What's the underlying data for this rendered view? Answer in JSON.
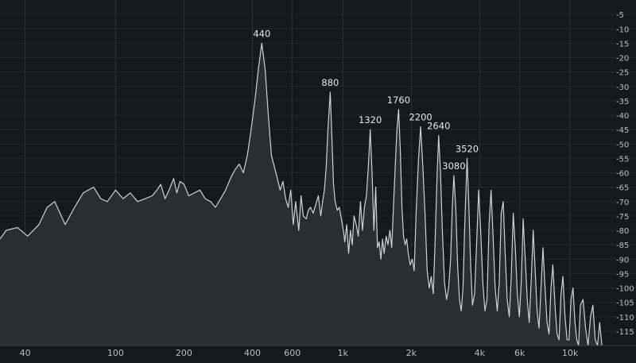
{
  "chart_data": {
    "type": "area",
    "title": "",
    "xlabel": "",
    "ylabel": "",
    "x_scale": "log",
    "xlim": [
      31,
      19500
    ],
    "ylim": [
      -120,
      0
    ],
    "grid": true,
    "x_ticks": [
      {
        "value": 40,
        "label": "40"
      },
      {
        "value": 100,
        "label": "100"
      },
      {
        "value": 200,
        "label": "200"
      },
      {
        "value": 400,
        "label": "400"
      },
      {
        "value": 600,
        "label": "600"
      },
      {
        "value": 1000,
        "label": "1k"
      },
      {
        "value": 2000,
        "label": "2k"
      },
      {
        "value": 4000,
        "label": "4k"
      },
      {
        "value": 6000,
        "label": "6k"
      },
      {
        "value": 10000,
        "label": "10k"
      }
    ],
    "y_ticks": [
      -5,
      -10,
      -15,
      -20,
      -25,
      -30,
      -35,
      -40,
      -45,
      -50,
      -55,
      -60,
      -65,
      -70,
      -75,
      -80,
      -85,
      -90,
      -95,
      -100,
      -105,
      -110,
      -115
    ],
    "peaks": [
      {
        "freq": 440,
        "label": "440",
        "level": -15
      },
      {
        "freq": 880,
        "label": "880",
        "level": -32
      },
      {
        "freq": 1320,
        "label": "1320",
        "level": -45
      },
      {
        "freq": 1760,
        "label": "1760",
        "level": -38
      },
      {
        "freq": 2200,
        "label": "2200",
        "level": -44
      },
      {
        "freq": 2640,
        "label": "2640",
        "level": -47
      },
      {
        "freq": 3080,
        "label": "3080",
        "level": -61
      },
      {
        "freq": 3520,
        "label": "3520",
        "level": -55
      }
    ],
    "series": [
      {
        "points": [
          [
            31,
            -83
          ],
          [
            33,
            -80
          ],
          [
            37,
            -79
          ],
          [
            41,
            -82
          ],
          [
            46,
            -78
          ],
          [
            50,
            -72
          ],
          [
            54,
            -70
          ],
          [
            60,
            -78
          ],
          [
            66,
            -72
          ],
          [
            72,
            -67
          ],
          [
            80,
            -65
          ],
          [
            86,
            -69
          ],
          [
            92,
            -70
          ],
          [
            100,
            -66
          ],
          [
            108,
            -69
          ],
          [
            116,
            -67
          ],
          [
            125,
            -70
          ],
          [
            135,
            -69
          ],
          [
            145,
            -68
          ],
          [
            152,
            -66
          ],
          [
            158,
            -64
          ],
          [
            165,
            -69
          ],
          [
            172,
            -66
          ],
          [
            180,
            -62
          ],
          [
            186,
            -67
          ],
          [
            192,
            -63
          ],
          [
            200,
            -64
          ],
          [
            210,
            -68
          ],
          [
            222,
            -67
          ],
          [
            235,
            -66
          ],
          [
            248,
            -69
          ],
          [
            262,
            -70
          ],
          [
            275,
            -72
          ],
          [
            290,
            -69
          ],
          [
            305,
            -66
          ],
          [
            320,
            -62
          ],
          [
            335,
            -59
          ],
          [
            350,
            -57
          ],
          [
            365,
            -60
          ],
          [
            380,
            -54
          ],
          [
            395,
            -45
          ],
          [
            410,
            -35
          ],
          [
            425,
            -24
          ],
          [
            440,
            -15
          ],
          [
            455,
            -24
          ],
          [
            470,
            -40
          ],
          [
            485,
            -54
          ],
          [
            500,
            -58
          ],
          [
            515,
            -62
          ],
          [
            530,
            -66
          ],
          [
            545,
            -63
          ],
          [
            560,
            -69
          ],
          [
            575,
            -72
          ],
          [
            590,
            -66
          ],
          [
            605,
            -78
          ],
          [
            620,
            -70
          ],
          [
            640,
            -80
          ],
          [
            655,
            -68
          ],
          [
            670,
            -75
          ],
          [
            690,
            -76
          ],
          [
            705,
            -73
          ],
          [
            720,
            -72
          ],
          [
            740,
            -74
          ],
          [
            760,
            -71
          ],
          [
            780,
            -68
          ],
          [
            800,
            -75
          ],
          [
            815,
            -70
          ],
          [
            830,
            -66
          ],
          [
            845,
            -58
          ],
          [
            860,
            -45
          ],
          [
            880,
            -32
          ],
          [
            895,
            -48
          ],
          [
            910,
            -64
          ],
          [
            925,
            -70
          ],
          [
            945,
            -73
          ],
          [
            965,
            -72
          ],
          [
            985,
            -76
          ],
          [
            1005,
            -80
          ],
          [
            1020,
            -84
          ],
          [
            1040,
            -78
          ],
          [
            1060,
            -88
          ],
          [
            1080,
            -80
          ],
          [
            1100,
            -85
          ],
          [
            1120,
            -75
          ],
          [
            1145,
            -78
          ],
          [
            1170,
            -82
          ],
          [
            1195,
            -70
          ],
          [
            1220,
            -80
          ],
          [
            1245,
            -72
          ],
          [
            1270,
            -68
          ],
          [
            1295,
            -58
          ],
          [
            1320,
            -45
          ],
          [
            1345,
            -60
          ],
          [
            1370,
            -80
          ],
          [
            1395,
            -65
          ],
          [
            1420,
            -86
          ],
          [
            1445,
            -84
          ],
          [
            1470,
            -90
          ],
          [
            1495,
            -83
          ],
          [
            1520,
            -88
          ],
          [
            1550,
            -82
          ],
          [
            1580,
            -85
          ],
          [
            1610,
            -80
          ],
          [
            1640,
            -86
          ],
          [
            1670,
            -72
          ],
          [
            1700,
            -58
          ],
          [
            1730,
            -45
          ],
          [
            1760,
            -38
          ],
          [
            1790,
            -52
          ],
          [
            1820,
            -72
          ],
          [
            1850,
            -82
          ],
          [
            1880,
            -85
          ],
          [
            1910,
            -83
          ],
          [
            1940,
            -88
          ],
          [
            1980,
            -92
          ],
          [
            2020,
            -90
          ],
          [
            2060,
            -94
          ],
          [
            2100,
            -74
          ],
          [
            2150,
            -56
          ],
          [
            2200,
            -44
          ],
          [
            2250,
            -58
          ],
          [
            2300,
            -74
          ],
          [
            2350,
            -94
          ],
          [
            2400,
            -100
          ],
          [
            2450,
            -96
          ],
          [
            2500,
            -102
          ],
          [
            2550,
            -82
          ],
          [
            2600,
            -60
          ],
          [
            2640,
            -47
          ],
          [
            2690,
            -60
          ],
          [
            2740,
            -80
          ],
          [
            2800,
            -98
          ],
          [
            2860,
            -104
          ],
          [
            2920,
            -100
          ],
          [
            2980,
            -90
          ],
          [
            3030,
            -72
          ],
          [
            3080,
            -61
          ],
          [
            3140,
            -72
          ],
          [
            3200,
            -92
          ],
          [
            3260,
            -104
          ],
          [
            3320,
            -108
          ],
          [
            3380,
            -100
          ],
          [
            3440,
            -78
          ],
          [
            3520,
            -55
          ],
          [
            3580,
            -70
          ],
          [
            3650,
            -92
          ],
          [
            3720,
            -106
          ],
          [
            3800,
            -102
          ],
          [
            3880,
            -84
          ],
          [
            3960,
            -66
          ],
          [
            4040,
            -80
          ],
          [
            4130,
            -98
          ],
          [
            4220,
            -108
          ],
          [
            4310,
            -104
          ],
          [
            4400,
            -78
          ],
          [
            4490,
            -66
          ],
          [
            4580,
            -82
          ],
          [
            4680,
            -100
          ],
          [
            4780,
            -108
          ],
          [
            4880,
            -98
          ],
          [
            4980,
            -74
          ],
          [
            5080,
            -70
          ],
          [
            5180,
            -88
          ],
          [
            5290,
            -104
          ],
          [
            5400,
            -110
          ],
          [
            5510,
            -96
          ],
          [
            5620,
            -74
          ],
          [
            5740,
            -86
          ],
          [
            5860,
            -102
          ],
          [
            5980,
            -110
          ],
          [
            6100,
            -98
          ],
          [
            6220,
            -76
          ],
          [
            6350,
            -90
          ],
          [
            6480,
            -104
          ],
          [
            6610,
            -112
          ],
          [
            6740,
            -98
          ],
          [
            6880,
            -80
          ],
          [
            7020,
            -94
          ],
          [
            7160,
            -108
          ],
          [
            7300,
            -114
          ],
          [
            7450,
            -100
          ],
          [
            7600,
            -86
          ],
          [
            7760,
            -100
          ],
          [
            7920,
            -112
          ],
          [
            8080,
            -116
          ],
          [
            8240,
            -100
          ],
          [
            8400,
            -92
          ],
          [
            8580,
            -106
          ],
          [
            8760,
            -116
          ],
          [
            8940,
            -118
          ],
          [
            9120,
            -102
          ],
          [
            9300,
            -96
          ],
          [
            9500,
            -110
          ],
          [
            9700,
            -118
          ],
          [
            9900,
            -118
          ],
          [
            10100,
            -104
          ],
          [
            10300,
            -100
          ],
          [
            10500,
            -112
          ],
          [
            10700,
            -118
          ],
          [
            10900,
            -120
          ],
          [
            11100,
            -106
          ],
          [
            11400,
            -104
          ],
          [
            11700,
            -114
          ],
          [
            12000,
            -120
          ],
          [
            12300,
            -110
          ],
          [
            12600,
            -106
          ],
          [
            12900,
            -118
          ],
          [
            13200,
            -120
          ],
          [
            13500,
            -112
          ],
          [
            13800,
            -120
          ]
        ]
      }
    ]
  }
}
